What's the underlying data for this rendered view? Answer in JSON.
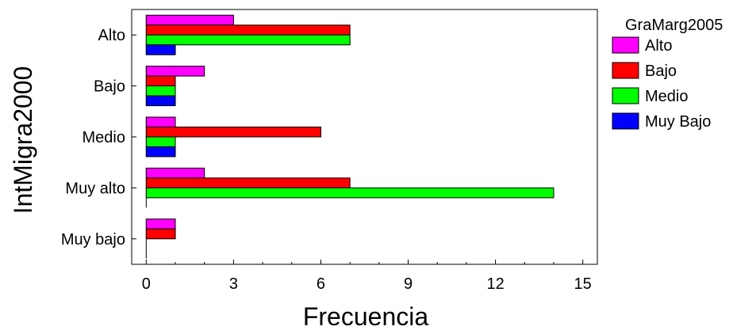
{
  "chart_data": {
    "type": "bar",
    "orientation": "horizontal",
    "title": "",
    "xlabel": "Frecuencia",
    "ylabel": "IntMigra2000",
    "categories": [
      "Alto",
      "Bajo",
      "Medio",
      "Muy alto",
      "Muy bajo"
    ],
    "series": [
      {
        "name": "Alto",
        "color": "#ff00ff",
        "values": [
          3,
          2,
          1,
          2,
          1
        ]
      },
      {
        "name": "Bajo",
        "color": "#ff0000",
        "values": [
          7,
          1,
          6,
          7,
          1
        ]
      },
      {
        "name": "Medio",
        "color": "#00ff00",
        "values": [
          7,
          1,
          1,
          14,
          0
        ]
      },
      {
        "name": "Muy Bajo",
        "color": "#0000ff",
        "values": [
          1,
          1,
          1,
          0,
          0
        ]
      }
    ],
    "xlim": [
      -0.5,
      15.5
    ],
    "xticks": [
      0,
      3,
      6,
      9,
      12,
      15
    ],
    "legend": {
      "title": "GraMarg2005",
      "position": "right"
    },
    "grid": false
  }
}
